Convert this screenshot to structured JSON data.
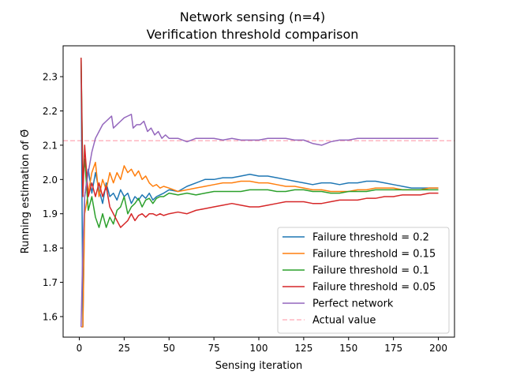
{
  "chart_data": {
    "type": "line",
    "title": "Network sensing (n=4)",
    "subtitle": "Verification threshold comparison",
    "xlabel": "Sensing iteration",
    "ylabel": "Running estimation of Θ̄",
    "xlim": [
      -9,
      209
    ],
    "ylim": [
      1.54,
      2.39
    ],
    "xticks": [
      0,
      25,
      50,
      75,
      100,
      125,
      150,
      175,
      200
    ],
    "yticks": [
      1.6,
      1.7,
      1.8,
      1.9,
      2.0,
      2.1,
      2.2,
      2.3
    ],
    "ytick_labels": [
      "1.6",
      "1.7",
      "1.8",
      "1.9",
      "2.0",
      "2.1",
      "2.2",
      "2.3"
    ],
    "grid": false,
    "legend_position": "lower-right",
    "series": [
      {
        "name": "Failure threshold = 0.2",
        "color": "#1f77b4",
        "points": [
          [
            1,
            2.355
          ],
          [
            2,
            1.57
          ],
          [
            3,
            1.95
          ],
          [
            5,
            2.03
          ],
          [
            7,
            1.96
          ],
          [
            9,
            2.02
          ],
          [
            11,
            1.97
          ],
          [
            13,
            1.93
          ],
          [
            15,
            1.99
          ],
          [
            17,
            1.95
          ],
          [
            19,
            1.96
          ],
          [
            21,
            1.94
          ],
          [
            23,
            1.97
          ],
          [
            25,
            1.95
          ],
          [
            27,
            1.96
          ],
          [
            29,
            1.93
          ],
          [
            31,
            1.95
          ],
          [
            33,
            1.94
          ],
          [
            35,
            1.955
          ],
          [
            37,
            1.945
          ],
          [
            39,
            1.96
          ],
          [
            41,
            1.94
          ],
          [
            43,
            1.95
          ],
          [
            45,
            1.955
          ],
          [
            47,
            1.96
          ],
          [
            50,
            1.97
          ],
          [
            55,
            1.965
          ],
          [
            60,
            1.98
          ],
          [
            65,
            1.99
          ],
          [
            70,
            2.0
          ],
          [
            75,
            2.0
          ],
          [
            80,
            2.005
          ],
          [
            85,
            2.005
          ],
          [
            90,
            2.01
          ],
          [
            95,
            2.015
          ],
          [
            100,
            2.01
          ],
          [
            105,
            2.01
          ],
          [
            110,
            2.005
          ],
          [
            115,
            2.0
          ],
          [
            120,
            1.995
          ],
          [
            125,
            1.99
          ],
          [
            130,
            1.985
          ],
          [
            135,
            1.99
          ],
          [
            140,
            1.99
          ],
          [
            145,
            1.985
          ],
          [
            150,
            1.99
          ],
          [
            155,
            1.99
          ],
          [
            160,
            1.995
          ],
          [
            165,
            1.995
          ],
          [
            170,
            1.99
          ],
          [
            175,
            1.985
          ],
          [
            180,
            1.98
          ],
          [
            185,
            1.975
          ],
          [
            190,
            1.975
          ],
          [
            195,
            1.975
          ],
          [
            200,
            1.975
          ]
        ]
      },
      {
        "name": "Failure threshold = 0.15",
        "color": "#ff7f0e",
        "points": [
          [
            1,
            1.57
          ],
          [
            2,
            1.57
          ],
          [
            3,
            1.9
          ],
          [
            5,
            1.96
          ],
          [
            7,
            2.02
          ],
          [
            9,
            2.05
          ],
          [
            11,
            1.95
          ],
          [
            13,
            2.0
          ],
          [
            15,
            1.97
          ],
          [
            17,
            2.02
          ],
          [
            19,
            1.99
          ],
          [
            21,
            2.02
          ],
          [
            23,
            2.0
          ],
          [
            25,
            2.04
          ],
          [
            27,
            2.02
          ],
          [
            29,
            2.03
          ],
          [
            31,
            2.01
          ],
          [
            33,
            2.025
          ],
          [
            35,
            2.0
          ],
          [
            37,
            2.01
          ],
          [
            39,
            1.99
          ],
          [
            41,
            1.98
          ],
          [
            43,
            1.985
          ],
          [
            45,
            1.975
          ],
          [
            47,
            1.98
          ],
          [
            50,
            1.975
          ],
          [
            55,
            1.965
          ],
          [
            60,
            1.97
          ],
          [
            65,
            1.975
          ],
          [
            70,
            1.98
          ],
          [
            75,
            1.985
          ],
          [
            80,
            1.99
          ],
          [
            85,
            1.99
          ],
          [
            90,
            1.995
          ],
          [
            95,
            1.995
          ],
          [
            100,
            1.99
          ],
          [
            105,
            1.99
          ],
          [
            110,
            1.985
          ],
          [
            115,
            1.98
          ],
          [
            120,
            1.98
          ],
          [
            125,
            1.975
          ],
          [
            130,
            1.97
          ],
          [
            135,
            1.97
          ],
          [
            140,
            1.965
          ],
          [
            145,
            1.965
          ],
          [
            150,
            1.965
          ],
          [
            155,
            1.97
          ],
          [
            160,
            1.97
          ],
          [
            165,
            1.975
          ],
          [
            170,
            1.975
          ],
          [
            175,
            1.975
          ],
          [
            180,
            1.97
          ],
          [
            185,
            1.97
          ],
          [
            190,
            1.97
          ],
          [
            195,
            1.975
          ],
          [
            200,
            1.975
          ]
        ]
      },
      {
        "name": "Failure threshold = 0.1",
        "color": "#2ca02c",
        "points": [
          [
            1,
            2.355
          ],
          [
            2,
            2.0
          ],
          [
            3,
            2.06
          ],
          [
            5,
            1.91
          ],
          [
            7,
            1.95
          ],
          [
            9,
            1.89
          ],
          [
            11,
            1.86
          ],
          [
            13,
            1.9
          ],
          [
            15,
            1.86
          ],
          [
            17,
            1.89
          ],
          [
            19,
            1.87
          ],
          [
            21,
            1.91
          ],
          [
            23,
            1.92
          ],
          [
            25,
            1.95
          ],
          [
            27,
            1.9
          ],
          [
            29,
            1.92
          ],
          [
            31,
            1.93
          ],
          [
            33,
            1.945
          ],
          [
            35,
            1.92
          ],
          [
            37,
            1.94
          ],
          [
            39,
            1.945
          ],
          [
            41,
            1.93
          ],
          [
            43,
            1.945
          ],
          [
            45,
            1.95
          ],
          [
            47,
            1.95
          ],
          [
            50,
            1.96
          ],
          [
            55,
            1.955
          ],
          [
            60,
            1.96
          ],
          [
            65,
            1.955
          ],
          [
            70,
            1.96
          ],
          [
            75,
            1.965
          ],
          [
            80,
            1.965
          ],
          [
            85,
            1.965
          ],
          [
            90,
            1.965
          ],
          [
            95,
            1.97
          ],
          [
            100,
            1.97
          ],
          [
            105,
            1.97
          ],
          [
            110,
            1.965
          ],
          [
            115,
            1.965
          ],
          [
            120,
            1.97
          ],
          [
            125,
            1.97
          ],
          [
            130,
            1.965
          ],
          [
            135,
            1.965
          ],
          [
            140,
            1.96
          ],
          [
            145,
            1.96
          ],
          [
            150,
            1.965
          ],
          [
            155,
            1.965
          ],
          [
            160,
            1.965
          ],
          [
            165,
            1.97
          ],
          [
            170,
            1.97
          ],
          [
            175,
            1.97
          ],
          [
            180,
            1.97
          ],
          [
            185,
            1.97
          ],
          [
            190,
            1.97
          ],
          [
            195,
            1.97
          ],
          [
            200,
            1.97
          ]
        ]
      },
      {
        "name": "Failure threshold = 0.05",
        "color": "#d62728",
        "points": [
          [
            1,
            2.355
          ],
          [
            2,
            1.95
          ],
          [
            3,
            2.1
          ],
          [
            5,
            1.95
          ],
          [
            7,
            1.99
          ],
          [
            9,
            1.95
          ],
          [
            11,
            1.99
          ],
          [
            13,
            1.95
          ],
          [
            15,
            1.98
          ],
          [
            17,
            1.92
          ],
          [
            19,
            1.9
          ],
          [
            21,
            1.88
          ],
          [
            23,
            1.86
          ],
          [
            25,
            1.87
          ],
          [
            27,
            1.88
          ],
          [
            29,
            1.9
          ],
          [
            31,
            1.88
          ],
          [
            33,
            1.895
          ],
          [
            35,
            1.9
          ],
          [
            37,
            1.89
          ],
          [
            39,
            1.9
          ],
          [
            41,
            1.9
          ],
          [
            43,
            1.895
          ],
          [
            45,
            1.9
          ],
          [
            47,
            1.895
          ],
          [
            50,
            1.9
          ],
          [
            55,
            1.905
          ],
          [
            60,
            1.9
          ],
          [
            65,
            1.91
          ],
          [
            70,
            1.915
          ],
          [
            75,
            1.92
          ],
          [
            80,
            1.925
          ],
          [
            85,
            1.93
          ],
          [
            90,
            1.925
          ],
          [
            95,
            1.92
          ],
          [
            100,
            1.92
          ],
          [
            105,
            1.925
          ],
          [
            110,
            1.93
          ],
          [
            115,
            1.935
          ],
          [
            120,
            1.935
          ],
          [
            125,
            1.935
          ],
          [
            130,
            1.93
          ],
          [
            135,
            1.93
          ],
          [
            140,
            1.935
          ],
          [
            145,
            1.94
          ],
          [
            150,
            1.94
          ],
          [
            155,
            1.94
          ],
          [
            160,
            1.945
          ],
          [
            165,
            1.945
          ],
          [
            170,
            1.95
          ],
          [
            175,
            1.95
          ],
          [
            180,
            1.955
          ],
          [
            185,
            1.955
          ],
          [
            190,
            1.955
          ],
          [
            195,
            1.96
          ],
          [
            200,
            1.96
          ]
        ]
      },
      {
        "name": "Perfect network",
        "color": "#9467bd",
        "points": [
          [
            1,
            1.57
          ],
          [
            2,
            1.8
          ],
          [
            3,
            1.95
          ],
          [
            5,
            2.02
          ],
          [
            7,
            2.08
          ],
          [
            9,
            2.12
          ],
          [
            11,
            2.14
          ],
          [
            13,
            2.16
          ],
          [
            15,
            2.17
          ],
          [
            17,
            2.18
          ],
          [
            18,
            2.185
          ],
          [
            19,
            2.15
          ],
          [
            21,
            2.16
          ],
          [
            23,
            2.17
          ],
          [
            25,
            2.18
          ],
          [
            27,
            2.185
          ],
          [
            29,
            2.19
          ],
          [
            30,
            2.15
          ],
          [
            32,
            2.16
          ],
          [
            34,
            2.16
          ],
          [
            36,
            2.17
          ],
          [
            38,
            2.14
          ],
          [
            40,
            2.15
          ],
          [
            42,
            2.13
          ],
          [
            44,
            2.14
          ],
          [
            46,
            2.12
          ],
          [
            48,
            2.13
          ],
          [
            50,
            2.12
          ],
          [
            55,
            2.12
          ],
          [
            60,
            2.11
          ],
          [
            65,
            2.12
          ],
          [
            70,
            2.12
          ],
          [
            75,
            2.12
          ],
          [
            80,
            2.115
          ],
          [
            85,
            2.12
          ],
          [
            90,
            2.115
          ],
          [
            95,
            2.115
          ],
          [
            100,
            2.115
          ],
          [
            105,
            2.12
          ],
          [
            110,
            2.12
          ],
          [
            115,
            2.12
          ],
          [
            120,
            2.115
          ],
          [
            125,
            2.115
          ],
          [
            130,
            2.105
          ],
          [
            135,
            2.1
          ],
          [
            140,
            2.11
          ],
          [
            145,
            2.115
          ],
          [
            150,
            2.115
          ],
          [
            155,
            2.12
          ],
          [
            160,
            2.12
          ],
          [
            165,
            2.12
          ],
          [
            170,
            2.12
          ],
          [
            175,
            2.12
          ],
          [
            180,
            2.12
          ],
          [
            185,
            2.12
          ],
          [
            190,
            2.12
          ],
          [
            195,
            2.12
          ],
          [
            200,
            2.12
          ]
        ]
      }
    ],
    "reference_line": {
      "name": "Actual value",
      "color": "#ffb6c1",
      "value": 2.113,
      "style": "dashed"
    }
  }
}
